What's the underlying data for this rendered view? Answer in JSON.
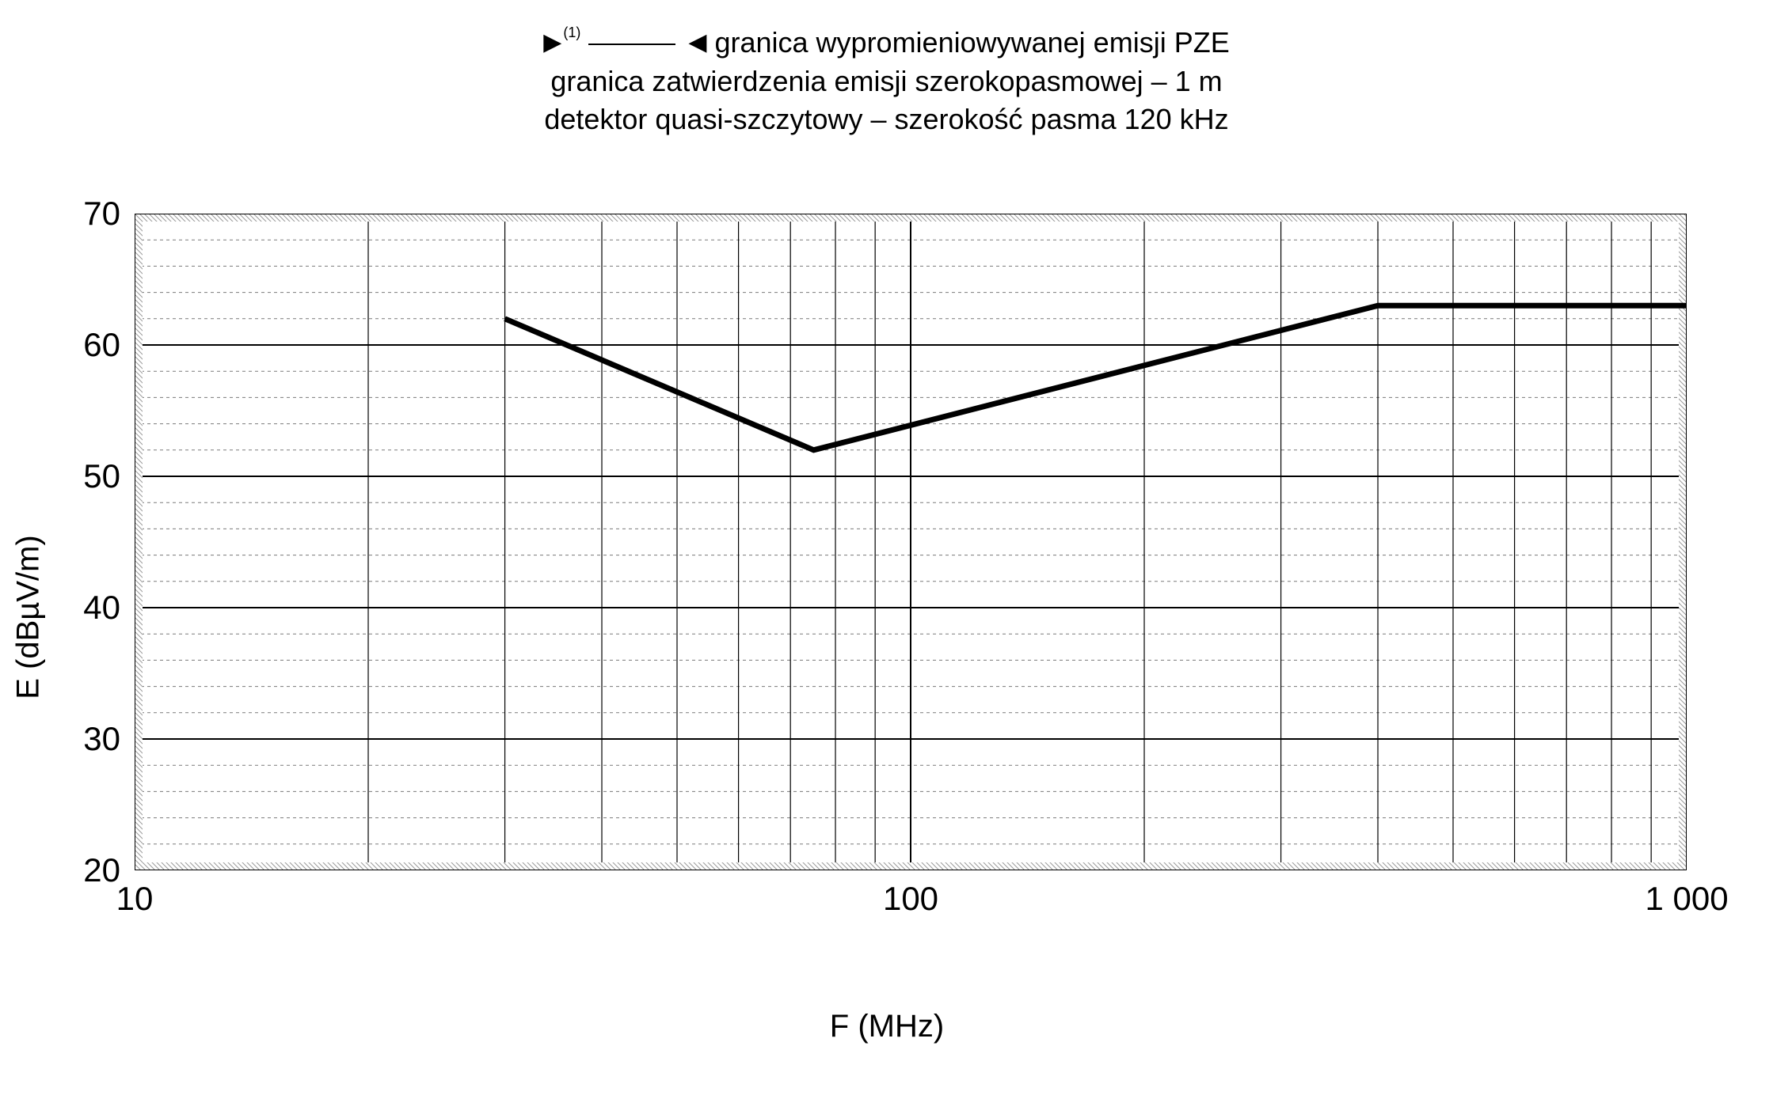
{
  "title": {
    "superscript": "(1)",
    "line1_after_blank": "granica wypromieniowywanej emisji PZE",
    "line2": "granica zatwierdzenia emisji szerokopasmowej – 1 m",
    "line3": "detektor quasi-szczytowy – szerokość pasma 120 kHz"
  },
  "chart": {
    "type": "line",
    "xlabel": "F (MHz)",
    "ylabel": "E (dBµV/m)",
    "x_scale": "log",
    "y_scale": "linear",
    "xlim": [
      10,
      1000
    ],
    "ylim": [
      20,
      70
    ],
    "y_ticks": [
      20,
      30,
      40,
      50,
      60,
      70
    ],
    "x_ticks": [
      10,
      100,
      1000
    ],
    "x_tick_labels": [
      "10",
      "100",
      "1 000"
    ],
    "y_minor_step": 2,
    "colors": {
      "background": "#ffffff",
      "plot_background": "#ffffff",
      "axis": "#000000",
      "major_grid": "#000000",
      "minor_grid": "#7a7a7a",
      "line": "#000000",
      "text": "#000000",
      "frame_hatch": "#9a9a9a"
    },
    "line_width": 7,
    "major_grid_width": 2,
    "minor_grid_width": 1,
    "minor_grid_dash": "4,4",
    "frame_width": 10,
    "series": [
      {
        "x": 30,
        "y": 62
      },
      {
        "x": 75,
        "y": 52
      },
      {
        "x": 400,
        "y": 63
      },
      {
        "x": 1000,
        "y": 63
      }
    ],
    "label_fontsize": 40,
    "tick_fontsize": 42
  }
}
